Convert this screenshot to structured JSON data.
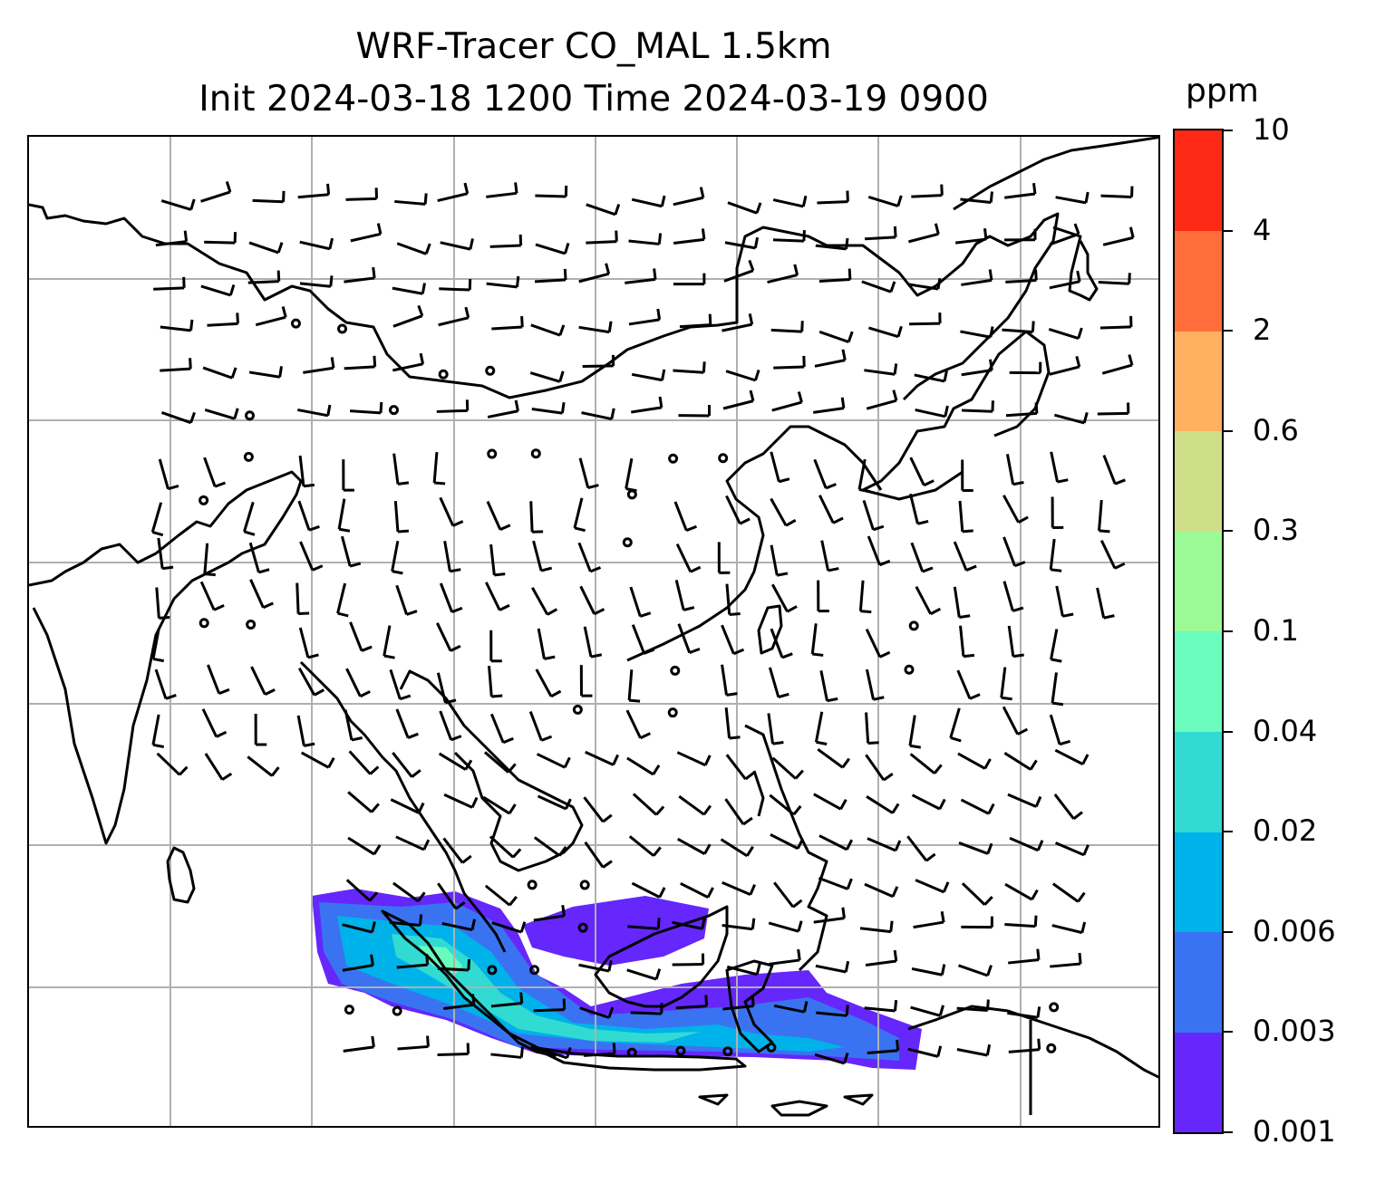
{
  "title": {
    "line1": "WRF-Tracer CO_MAL 1.5km",
    "line2": "Init 2024-03-18 1200 Time 2024-03-19 0900"
  },
  "colorbar": {
    "unit": "ppm",
    "labels": [
      "0.001",
      "0.003",
      "0.006",
      "0.02",
      "0.04",
      "0.1",
      "0.3",
      "0.6",
      "2",
      "4",
      "10"
    ],
    "colors": [
      "#6527fb",
      "#3a73f2",
      "#00b2ea",
      "#31dbd2",
      "#6afcbd",
      "#9cfa96",
      "#cfdf88",
      "#ffb060",
      "#ff6e3a",
      "#ff2a16"
    ]
  },
  "colors": {
    "coastline": "#000000",
    "gridline": "#b0b0b0",
    "barb": "#000000"
  },
  "map": {
    "features": [
      "coastline",
      "gridlines",
      "wind-barbs",
      "calm-circles",
      "tracer-concentration"
    ]
  }
}
